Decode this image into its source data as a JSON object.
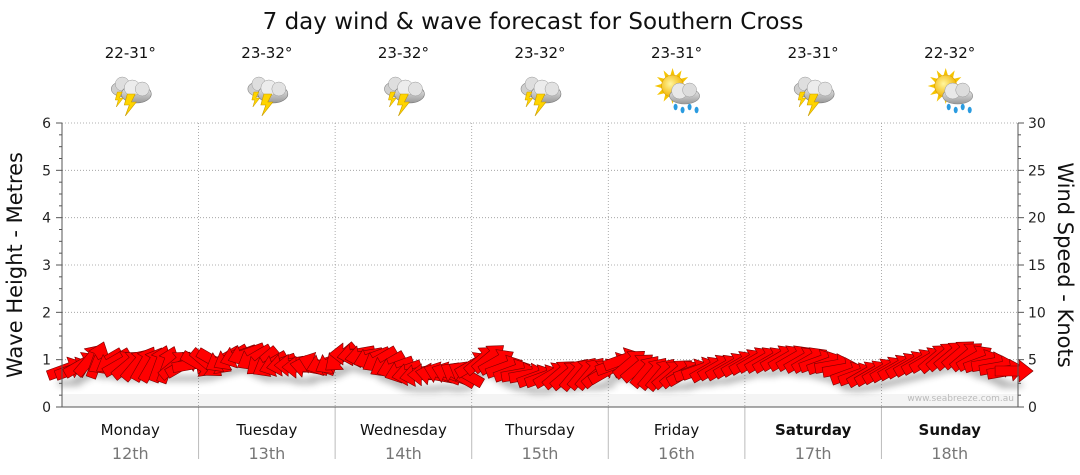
{
  "chart_data": {
    "type": "line",
    "title": "7 day wind & wave forecast for Southern Cross",
    "ylabel": "Wave Height - Metres",
    "y2label": "Wind Speed - Knots",
    "ylim": [
      0,
      6
    ],
    "y2lim": [
      0,
      30
    ],
    "y_ticks": [
      "0",
      "1",
      "2",
      "3",
      "4",
      "5",
      "6"
    ],
    "y2_ticks": [
      "0",
      "5",
      "10",
      "15",
      "20",
      "25",
      "30"
    ],
    "grid": true,
    "days": [
      {
        "day": "Monday",
        "date": "12th",
        "temp": "22-31°",
        "icon": "thunderstorm-icon",
        "bold": false
      },
      {
        "day": "Tuesday",
        "date": "13th",
        "temp": "23-32°",
        "icon": "thunderstorm-icon",
        "bold": false
      },
      {
        "day": "Wednesday",
        "date": "14th",
        "temp": "23-32°",
        "icon": "thunderstorm-icon",
        "bold": false
      },
      {
        "day": "Thursday",
        "date": "15th",
        "temp": "23-32°",
        "icon": "thunderstorm-icon",
        "bold": false
      },
      {
        "day": "Friday",
        "date": "16th",
        "temp": "23-31°",
        "icon": "sun-showers-icon",
        "bold": false
      },
      {
        "day": "Saturday",
        "date": "17th",
        "temp": "23-31°",
        "icon": "thunderstorm-icon",
        "bold": true
      },
      {
        "day": "Sunday",
        "date": "18th",
        "temp": "22-32°",
        "icon": "sun-showers-icon",
        "bold": true
      }
    ],
    "wind_series": {
      "color": "#ff0000",
      "speed_knots": [
        4,
        4,
        4.5,
        5,
        5,
        4.8,
        4.8,
        4.6,
        4.5,
        4.5,
        4.6,
        4.5,
        4.6,
        4.5,
        4.5,
        4.5,
        4.5,
        4.5,
        4.6,
        4.8,
        5,
        5.2,
        5.4,
        5.6,
        5.2,
        4.8,
        4.5,
        4.5,
        4.5,
        4.4,
        4.2,
        4.2,
        4.5,
        4.6,
        4.8,
        5.2,
        5.6,
        5.6,
        5.4,
        5.2,
        5,
        4.5,
        4.2,
        3.8,
        3.5,
        3.4,
        3.4,
        3.4,
        3.5,
        3.5,
        3.4,
        3.5,
        4.5,
        5,
        5.2,
        4.8,
        4.2,
        3.8,
        3.5,
        3.4,
        3.2,
        3.2,
        3.4,
        3.5,
        3.4,
        3.5,
        3.6,
        3.6,
        3.6,
        3.8,
        4.5,
        5,
        4.6,
        4.2,
        3.8,
        3.6,
        3.5,
        3.5,
        3.6,
        3.6,
        3.8,
        4,
        4,
        4.2,
        4.2,
        4.4,
        4.6,
        4.8,
        5,
        5,
        5,
        5.2,
        5.2,
        5.2,
        5,
        5,
        4.8,
        4.6,
        4.4,
        4,
        3.5,
        3.4,
        3.5,
        3.6,
        3.8,
        4,
        4.2,
        4.4,
        4.6,
        4.8,
        5,
        5.2,
        5.4,
        5.5,
        5.6,
        5.4,
        5.2,
        4.8,
        4.6,
        4.2,
        3.8,
        3.8
      ],
      "direction_deg": [
        250,
        250,
        240,
        220,
        200,
        60,
        60,
        240,
        230,
        220,
        210,
        210,
        200,
        200,
        230,
        240,
        260,
        300,
        310,
        300,
        60,
        60,
        70,
        70,
        60,
        50,
        60,
        70,
        80,
        90,
        90,
        100,
        110,
        70,
        60,
        50,
        90,
        80,
        80,
        70,
        60,
        60,
        70,
        70,
        80,
        80,
        90,
        100,
        110,
        110,
        120,
        120,
        240,
        230,
        230,
        240,
        250,
        250,
        260,
        260,
        250,
        250,
        240,
        230,
        230,
        220,
        220,
        220,
        230,
        240,
        250,
        250,
        230,
        230,
        220,
        220,
        220,
        230,
        230,
        240,
        250,
        250,
        240,
        240,
        240,
        240,
        240,
        240,
        240,
        240,
        240,
        240,
        240,
        240,
        240,
        240,
        250,
        250,
        260,
        260,
        250,
        250,
        240,
        240,
        240,
        240,
        240,
        240,
        240,
        240,
        240,
        230,
        230,
        230,
        230,
        230,
        240,
        250,
        260,
        260,
        260,
        270
      ]
    },
    "watermark": "www.seabreeze.com.au"
  }
}
